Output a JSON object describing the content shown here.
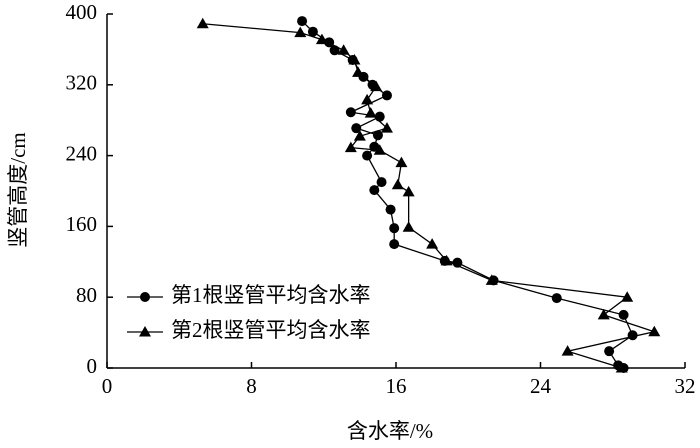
{
  "chart_data": {
    "type": "line",
    "xlabel": "含水率/%",
    "ylabel": "竖管高度/cm",
    "xlim": [
      0,
      32
    ],
    "xticks": [
      0,
      8,
      16,
      24,
      32
    ],
    "ylim": [
      0,
      400
    ],
    "yticks": [
      0,
      80,
      160,
      240,
      320,
      400
    ],
    "legend": "lower left",
    "series": [
      {
        "name": "第1根竖管平均含水率",
        "color": "#000000",
        "marker": "circle",
        "x": [
          10.8,
          11.4,
          12.3,
          12.6,
          13.6,
          14.2,
          14.7,
          15.5,
          13.5,
          15.1,
          13.8,
          15.0,
          14.8,
          14.4,
          15.2,
          14.8,
          15.7,
          15.9,
          15.9,
          18.7,
          19.4,
          21.4,
          24.9,
          28.6,
          29.1,
          27.8,
          28.3,
          28.6
        ],
        "y": [
          392,
          380,
          368,
          359,
          348,
          329,
          320,
          308,
          289,
          284,
          271,
          263,
          250,
          240,
          210,
          201,
          179,
          158,
          140,
          121,
          119,
          99,
          79,
          60,
          37,
          19,
          3,
          0
        ]
      },
      {
        "name": "第2根竖管平均含水率",
        "color": "#000000",
        "marker": "triangle",
        "x": [
          5.3,
          10.7,
          11.9,
          13.1,
          13.7,
          13.9,
          14.9,
          14.4,
          14.6,
          15.5,
          14.0,
          13.5,
          15.1,
          16.3,
          16.1,
          16.7,
          16.7,
          18.0,
          18.8,
          21.3,
          28.8,
          27.5,
          30.3,
          25.5,
          28.5
        ],
        "y": [
          389,
          379,
          371,
          359,
          348,
          334,
          318,
          303,
          288,
          271,
          262,
          249,
          246,
          232,
          207,
          199,
          159,
          140,
          121,
          99,
          80,
          60,
          41,
          19,
          0
        ]
      }
    ]
  }
}
